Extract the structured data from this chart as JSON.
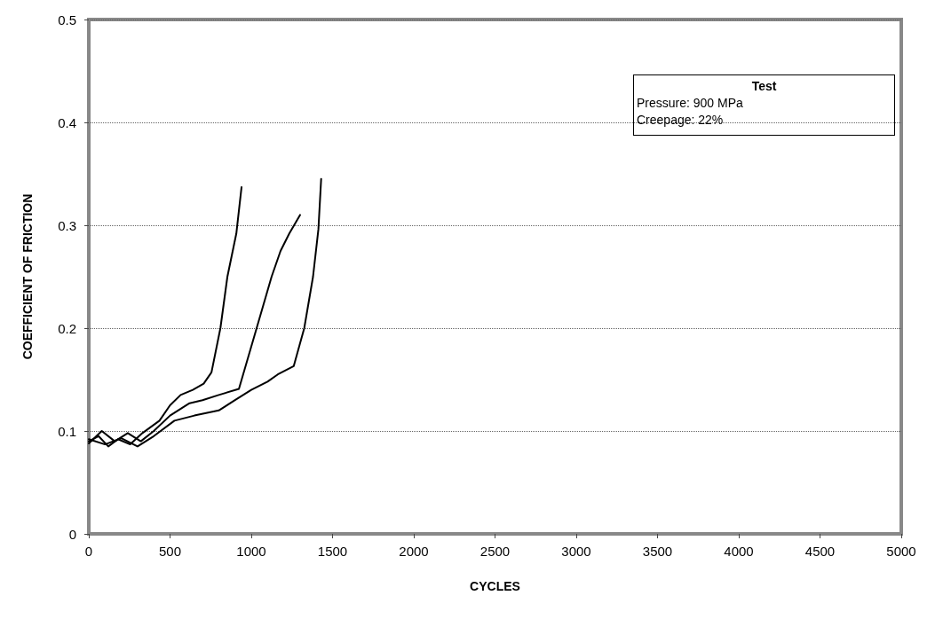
{
  "chart_data": {
    "type": "line",
    "xlabel": "CYCLES",
    "ylabel": "COEFFICIENT OF FRICTION",
    "xlim": [
      0,
      5000
    ],
    "ylim": [
      0,
      0.5
    ],
    "xticks": [
      0,
      500,
      1000,
      1500,
      2000,
      2500,
      3000,
      3500,
      4000,
      4500,
      5000
    ],
    "yticks": [
      0,
      0.1,
      0.2,
      0.3,
      0.4,
      0.5
    ],
    "grid": "y",
    "marker": "none",
    "line_style": "solid",
    "annotations": [
      "Test",
      "Pressure: 900 MPa",
      "Creepage: 22%"
    ],
    "series": [
      {
        "color": "#000000",
        "x": [
          0,
          60,
          120,
          180,
          255,
          330,
          435,
          500,
          565,
          640,
          707,
          755,
          810,
          853,
          908,
          940
        ],
        "values": [
          0.09,
          0.095,
          0.085,
          0.092,
          0.087,
          0.098,
          0.11,
          0.125,
          0.135,
          0.14,
          0.146,
          0.157,
          0.2,
          0.25,
          0.292,
          0.337
        ]
      },
      {
        "color": "#000000",
        "x": [
          0,
          80,
          160,
          240,
          320,
          400,
          500,
          620,
          700,
          800,
          924,
          1033,
          1125,
          1180,
          1234,
          1300
        ],
        "values": [
          0.088,
          0.1,
          0.09,
          0.098,
          0.09,
          0.1,
          0.115,
          0.127,
          0.13,
          0.135,
          0.141,
          0.2,
          0.25,
          0.275,
          0.292,
          0.31
        ]
      },
      {
        "color": "#000000",
        "x": [
          0,
          100,
          200,
          300,
          400,
          527,
          650,
          800,
          900,
          1000,
          1100,
          1163,
          1261,
          1326,
          1380,
          1413,
          1430
        ],
        "values": [
          0.092,
          0.087,
          0.093,
          0.085,
          0.095,
          0.11,
          0.115,
          0.12,
          0.13,
          0.14,
          0.148,
          0.155,
          0.163,
          0.2,
          0.25,
          0.296,
          0.345
        ]
      }
    ]
  }
}
